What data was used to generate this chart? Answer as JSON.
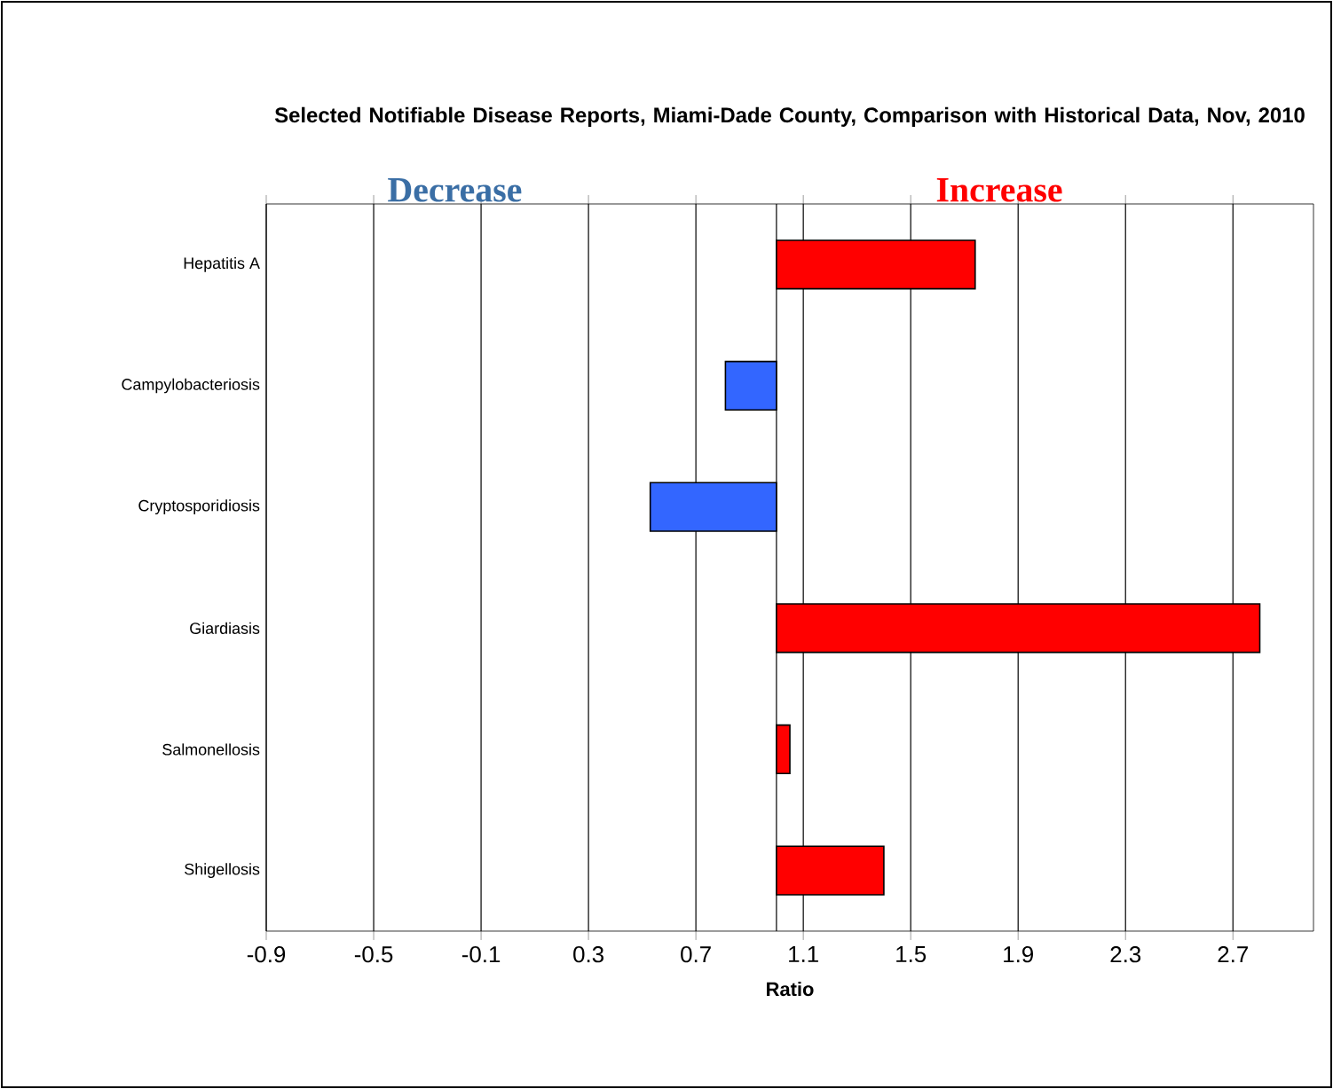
{
  "chart_data": {
    "type": "bar",
    "orientation": "horizontal",
    "title": "Selected Notifiable Disease Reports, Miami-Dade County, Comparison with Historical Data, Nov, 2010",
    "xlabel": "Ratio",
    "categories": [
      "Hepatitis A",
      "Campylobacteriosis",
      "Cryptosporidiosis",
      "Giardiasis",
      "Salmonellosis",
      "Shigellosis"
    ],
    "base": [
      1,
      1,
      1,
      1,
      1,
      1
    ],
    "values": [
      0.74,
      -0.19,
      -0.47,
      1.8,
      0.05,
      0.4
    ],
    "colors": [
      "#ff0000",
      "#3366ff",
      "#3366ff",
      "#ff0000",
      "#ff0000",
      "#ff0000"
    ],
    "xlim": [
      -0.9,
      3.0
    ],
    "xticks": [
      -0.9,
      -0.5,
      -0.1,
      0.3,
      0.7,
      1.1,
      1.5,
      1.9,
      2.3,
      2.7
    ],
    "grid": "x",
    "annotations": [
      "Decrease",
      "Increase"
    ]
  }
}
